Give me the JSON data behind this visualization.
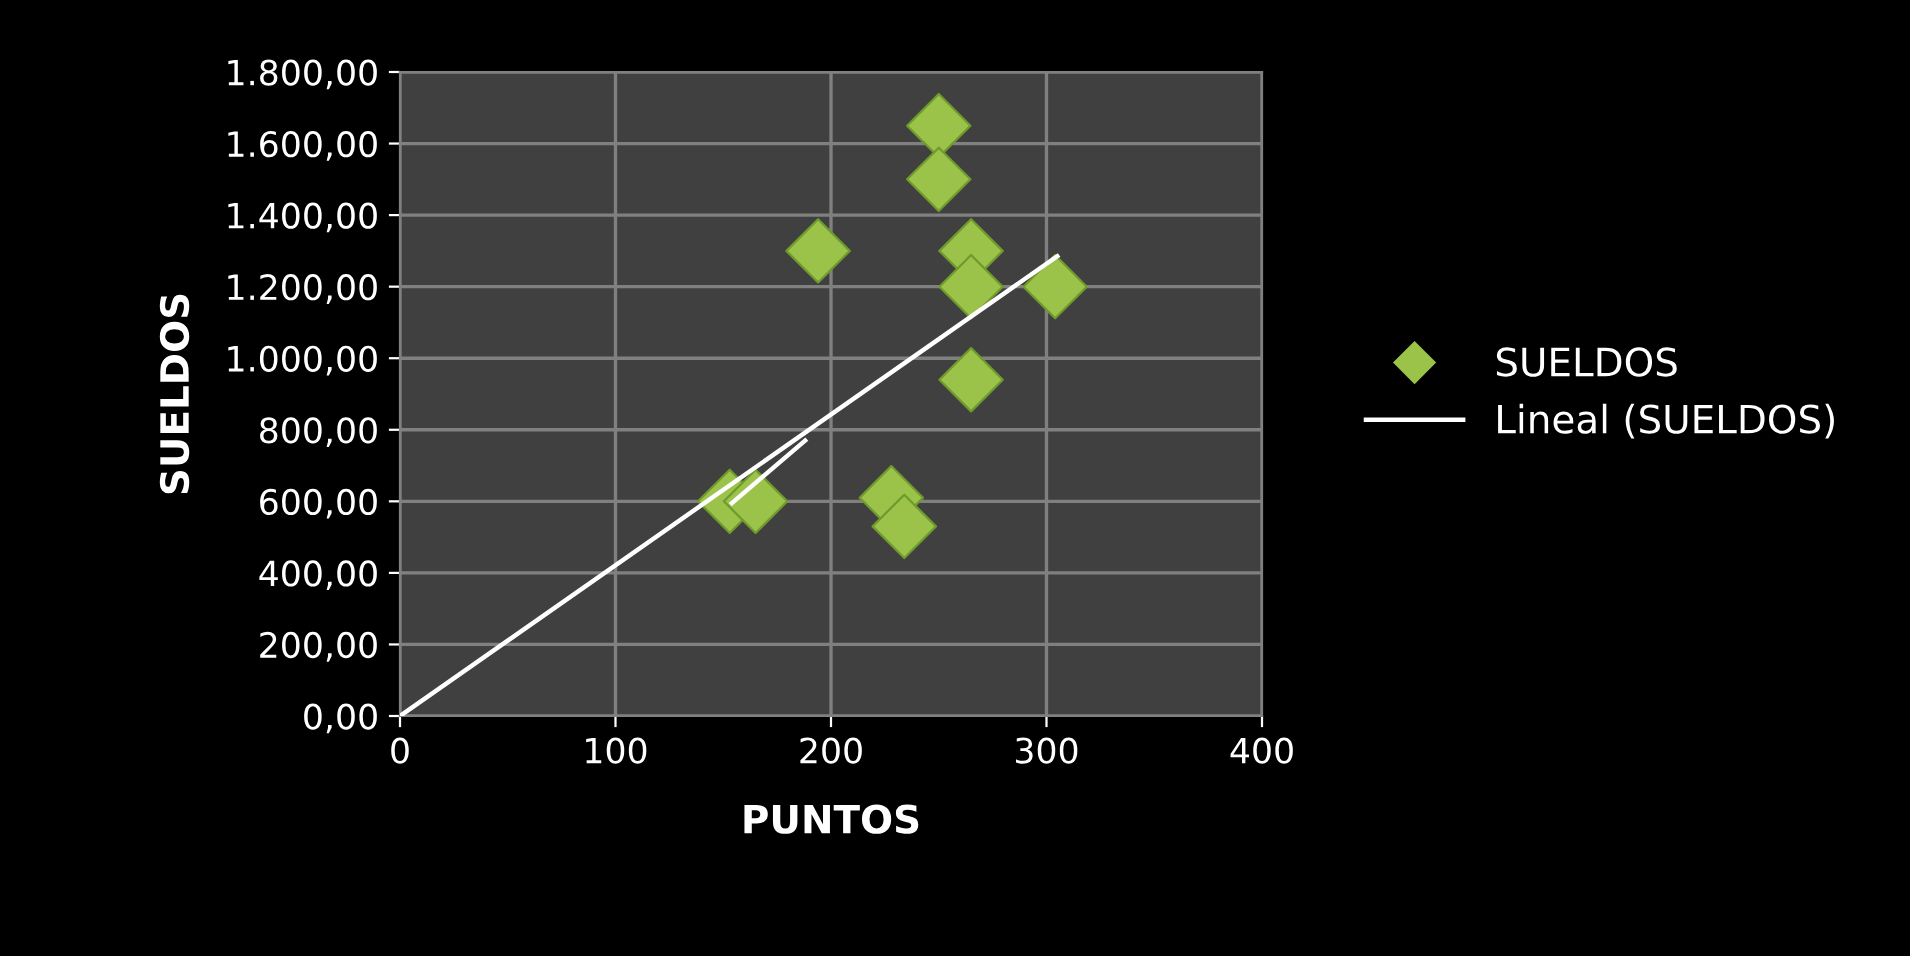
{
  "chart_data": {
    "type": "scatter",
    "xlabel": "PUNTOS",
    "ylabel": "SUELDOS",
    "series": [
      {
        "name": "SUELDOS",
        "color": "#9bc34a",
        "marker": "diamond",
        "x": [
          153,
          165,
          194,
          250,
          250,
          265,
          265,
          304,
          265,
          228,
          234
        ],
        "values": [
          600,
          600,
          1300,
          1650,
          1500,
          1300,
          1200,
          1200,
          940,
          610,
          530
        ]
      },
      {
        "name": "Lineal (SUELDOS)",
        "type": "line",
        "color": "#ffffff",
        "marker": "none",
        "line_style": "solid",
        "x": [
          0,
          305
        ],
        "values": [
          0,
          1285
        ]
      },
      {
        "type": "line",
        "color": "#ffffff",
        "marker": "none",
        "line_style": "solid",
        "x": [
          154,
          188
        ],
        "values": [
          595,
          770
        ]
      }
    ],
    "xlim": [
      0,
      400
    ],
    "xticks": [
      0,
      100,
      200,
      300,
      400
    ],
    "ylim": [
      0,
      1800
    ],
    "yticks": [
      {
        "value": 0,
        "label": "0,00"
      },
      {
        "value": 200,
        "label": "200,00"
      },
      {
        "value": 400,
        "label": "400,00"
      },
      {
        "value": 600,
        "label": "600,00"
      },
      {
        "value": 800,
        "label": "800,00"
      },
      {
        "value": 1000,
        "label": "1.000,00"
      },
      {
        "value": 1200,
        "label": "1.200,00"
      },
      {
        "value": 1400,
        "label": "1.400,00"
      },
      {
        "value": 1600,
        "label": "1.600,00"
      },
      {
        "value": 1800,
        "label": "1.800,00"
      }
    ],
    "grid": true,
    "legend": "right"
  }
}
